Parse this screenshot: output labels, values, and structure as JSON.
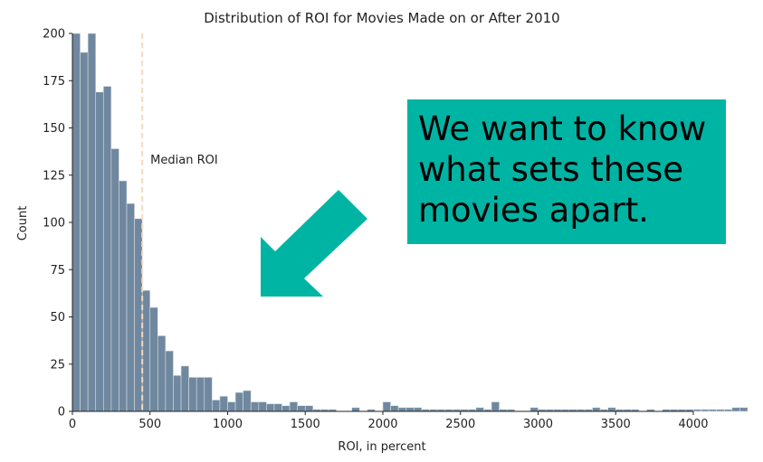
{
  "chart_data": {
    "type": "bar",
    "title": "Distribution of ROI for Movies Made on or After 2010",
    "xlabel": "ROI, in percent",
    "ylabel": "Count",
    "xlim": [
      0,
      4000
    ],
    "ylim": [
      0,
      200
    ],
    "xticks": [
      0,
      500,
      1000,
      1500,
      2000,
      2500,
      3000,
      3500,
      4000
    ],
    "yticks": [
      0,
      25,
      50,
      75,
      100,
      125,
      150,
      175,
      200
    ],
    "bin_width": 50,
    "bins_start": 0,
    "values": [
      200,
      190,
      200,
      169,
      172,
      139,
      122,
      110,
      102,
      64,
      55,
      40,
      32,
      19,
      24,
      18,
      18,
      18,
      6,
      8,
      5,
      10,
      11,
      5,
      5,
      4,
      4,
      3,
      5,
      3,
      3,
      1,
      1,
      1,
      0,
      0,
      2,
      0,
      1,
      0,
      5,
      3,
      2,
      2,
      2,
      1,
      1,
      1,
      1,
      1,
      1,
      1,
      2,
      1,
      5,
      1,
      1,
      0,
      0,
      2,
      1,
      1,
      1,
      1,
      1,
      1,
      1,
      2,
      1,
      2,
      1,
      1,
      1,
      0,
      1,
      0,
      1,
      1,
      1,
      1,
      1,
      1,
      1,
      1,
      1,
      2,
      2,
      0,
      0,
      0
    ],
    "grid": false,
    "bar_color": "#6f889f",
    "annotation": {
      "label": "Median ROI",
      "x": 450,
      "color": "#f6d9bd"
    }
  },
  "callout": {
    "lines": [
      "We want to know",
      "what sets these",
      "movies apart."
    ],
    "bg_color": "#00b4a4"
  },
  "arrow_icon": "arrow-down-left-icon",
  "arrow_color": "#00b4a4"
}
